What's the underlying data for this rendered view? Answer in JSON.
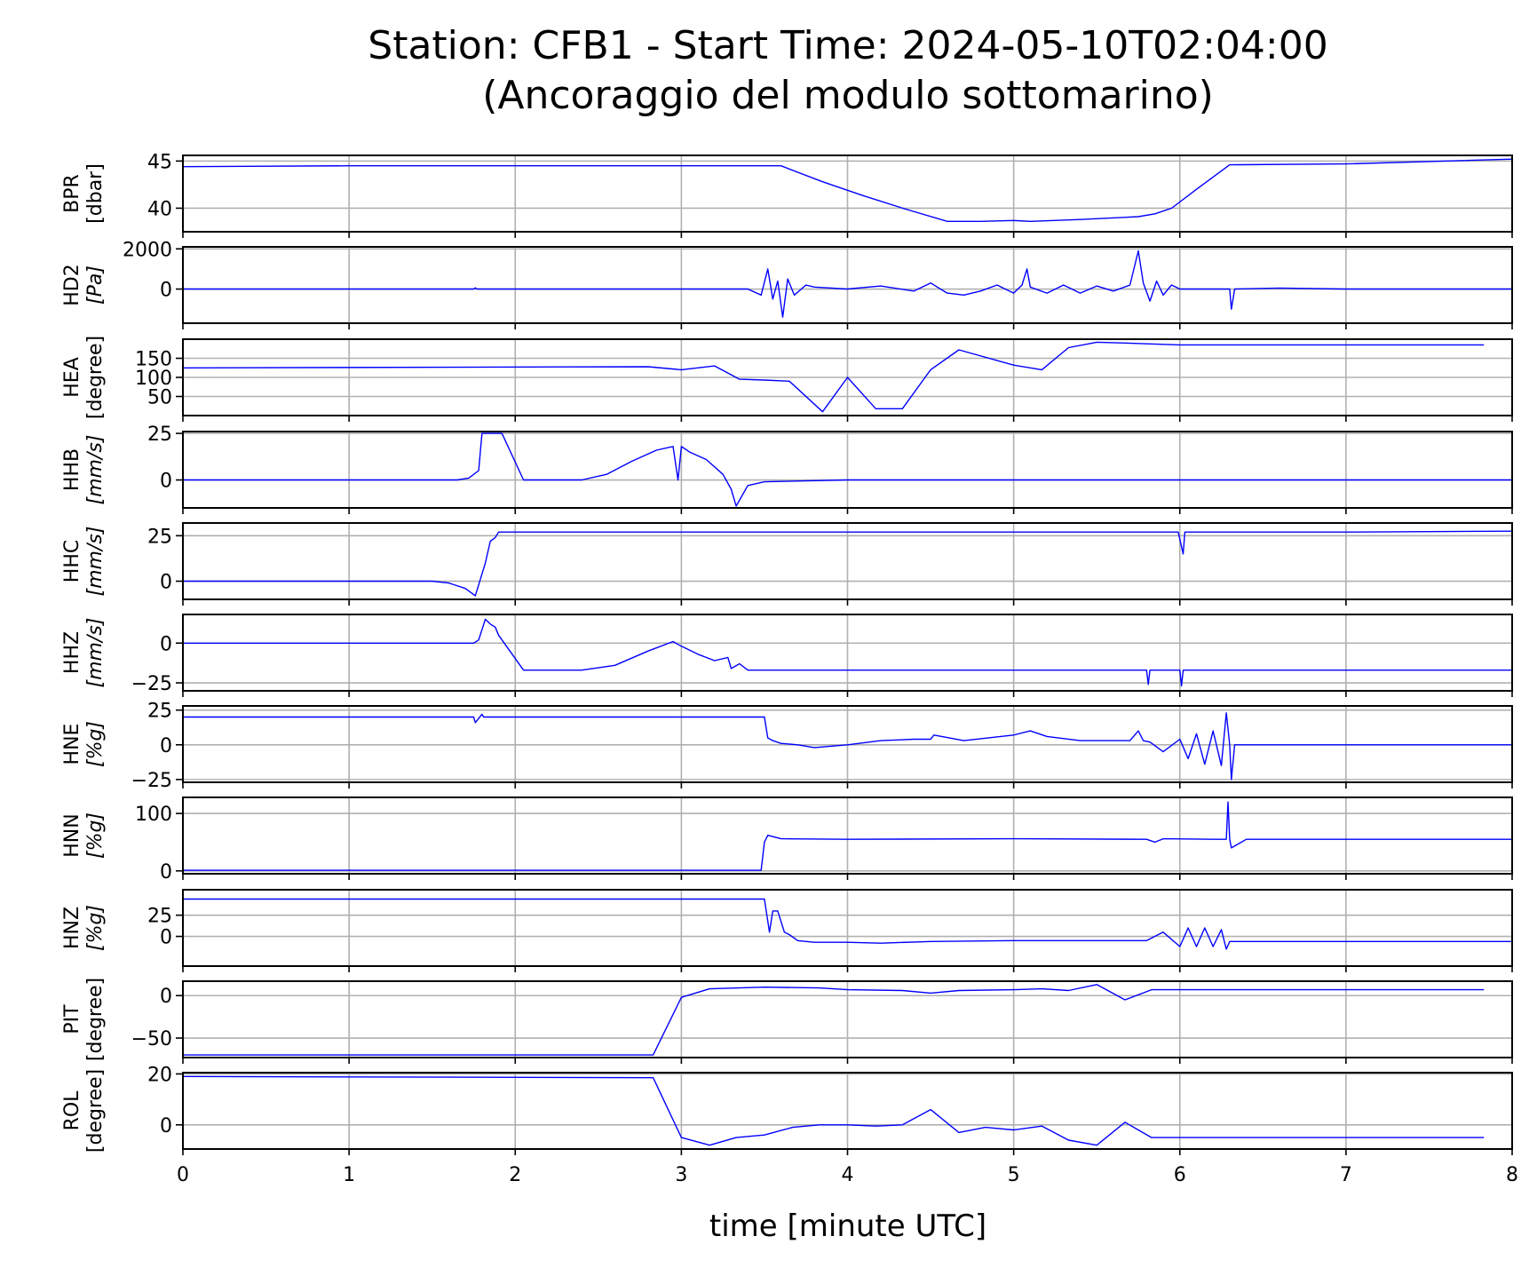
{
  "chart_data": {
    "type": "line",
    "title_line1": "Station: CFB1 - Start Time: 2024-05-10T02:04:00",
    "title_line2": "(Ancoraggio del modulo sottomarino)",
    "xlabel": "time [minute UTC]",
    "xlim": [
      0,
      8
    ],
    "xticks": [
      0,
      1,
      2,
      3,
      4,
      5,
      6,
      7,
      8
    ],
    "grid": true,
    "line_color": "#0000ff",
    "panels": [
      {
        "name": "BPR",
        "unit": "[dbar]",
        "italic_unit": false,
        "ylim": [
          37.5,
          45.6
        ],
        "yticks": [
          40,
          45
        ],
        "x": [
          0,
          1,
          2,
          3,
          3.6,
          3.85,
          4.1,
          4.35,
          4.6,
          4.8,
          5.0,
          5.1,
          5.4,
          5.75,
          5.85,
          5.95,
          6.1,
          6.3,
          7.0,
          8.0
        ],
        "y": [
          44.4,
          44.5,
          44.5,
          44.5,
          44.5,
          42.8,
          41.3,
          39.9,
          38.6,
          38.6,
          38.7,
          38.6,
          38.8,
          39.1,
          39.4,
          40.0,
          42.0,
          44.6,
          44.7,
          45.2
        ]
      },
      {
        "name": "HD2",
        "unit": "[Pa]",
        "italic_unit": true,
        "ylim": [
          -1700,
          2100
        ],
        "yticks": [
          0,
          2000
        ],
        "x": [
          0,
          1,
          1.75,
          1.76,
          1.77,
          2.5,
          3.0,
          3.4,
          3.48,
          3.52,
          3.55,
          3.58,
          3.61,
          3.64,
          3.68,
          3.75,
          3.8,
          4.0,
          4.2,
          4.4,
          4.5,
          4.6,
          4.7,
          4.8,
          4.9,
          5.0,
          5.05,
          5.08,
          5.1,
          5.2,
          5.3,
          5.4,
          5.5,
          5.6,
          5.7,
          5.75,
          5.78,
          5.82,
          5.86,
          5.9,
          5.95,
          6.0,
          6.1,
          6.3,
          6.31,
          6.33,
          6.6,
          7.0,
          8.0
        ],
        "y": [
          0,
          0,
          0,
          60,
          0,
          0,
          0,
          0,
          -300,
          1000,
          -500,
          400,
          -1400,
          500,
          -300,
          200,
          100,
          0,
          150,
          -100,
          300,
          -200,
          -300,
          -100,
          200,
          -200,
          200,
          1000,
          100,
          -200,
          200,
          -200,
          150,
          -100,
          200,
          1900,
          300,
          -600,
          400,
          -300,
          200,
          0,
          0,
          0,
          -1000,
          0,
          50,
          0,
          0
        ]
      },
      {
        "name": "HEA",
        "unit": "[degree]",
        "italic_unit": false,
        "ylim": [
          0,
          200
        ],
        "yticks": [
          50,
          100,
          150
        ],
        "x": [
          0,
          2.8,
          3.0,
          3.2,
          3.35,
          3.5,
          3.65,
          3.85,
          4.0,
          4.17,
          4.33,
          4.5,
          4.67,
          5.0,
          5.17,
          5.33,
          5.5,
          5.67,
          6.0,
          7.0,
          7.83
        ],
        "y": [
          125,
          128,
          120,
          130,
          95,
          93,
          90,
          10,
          100,
          18,
          18,
          120,
          172,
          132,
          120,
          178,
          192,
          190,
          185,
          185,
          185
        ]
      },
      {
        "name": "HHB",
        "unit": "[mm/s]",
        "italic_unit": true,
        "ylim": [
          -15,
          26
        ],
        "yticks": [
          0,
          25
        ],
        "x": [
          0,
          1.5,
          1.65,
          1.72,
          1.78,
          1.8,
          1.85,
          1.92,
          2.05,
          2.4,
          2.55,
          2.7,
          2.85,
          2.95,
          2.98,
          3.0,
          3.05,
          3.15,
          3.25,
          3.3,
          3.33,
          3.4,
          3.5,
          4.0,
          5.0,
          6.0,
          8.0
        ],
        "y": [
          0,
          0,
          0,
          1,
          5,
          25,
          25,
          25,
          0,
          0,
          3,
          10,
          16,
          18,
          0,
          18,
          15,
          11,
          3,
          -5,
          -14,
          -3,
          -1,
          0,
          0,
          0,
          0
        ]
      },
      {
        "name": "HHC",
        "unit": "[mm/s]",
        "italic_unit": true,
        "ylim": [
          -10,
          32
        ],
        "yticks": [
          0,
          25
        ],
        "x": [
          0,
          1.5,
          1.6,
          1.7,
          1.76,
          1.78,
          1.82,
          1.85,
          1.88,
          1.9,
          2.0,
          3.0,
          4.0,
          5.0,
          5.99,
          6.02,
          6.03,
          6.05,
          7.0,
          8.0
        ],
        "y": [
          0,
          0,
          -1,
          -4,
          -8,
          -2,
          10,
          22,
          24,
          27,
          27,
          27,
          27,
          27,
          27,
          15,
          27,
          27,
          27,
          27.5
        ]
      },
      {
        "name": "HHZ",
        "unit": "[mm/s]",
        "italic_unit": true,
        "ylim": [
          -30,
          18
        ],
        "yticks": [
          -25,
          0
        ],
        "x": [
          0,
          1.75,
          1.78,
          1.82,
          1.85,
          1.88,
          1.9,
          2.05,
          2.4,
          2.6,
          2.8,
          2.95,
          3.0,
          3.1,
          3.2,
          3.28,
          3.3,
          3.35,
          3.4,
          3.5,
          4.0,
          5.0,
          5.7,
          5.8,
          5.81,
          5.82,
          6.0,
          6.01,
          6.02,
          6.3,
          8.0
        ],
        "y": [
          0,
          0,
          2,
          15,
          12,
          10,
          5,
          -17,
          -17,
          -14,
          -5,
          1,
          -2,
          -7,
          -11,
          -9,
          -16,
          -13,
          -17,
          -17,
          -17,
          -17,
          -17,
          -17,
          -26,
          -17,
          -17,
          -27,
          -17,
          -17,
          -17
        ]
      },
      {
        "name": "HNE",
        "unit": "[%g]",
        "italic_unit": true,
        "ylim": [
          -27,
          28
        ],
        "yticks": [
          -25,
          0,
          25
        ],
        "x": [
          0,
          1,
          1.75,
          1.76,
          1.8,
          1.81,
          2.0,
          3.0,
          3.4,
          3.5,
          3.52,
          3.55,
          3.6,
          3.7,
          3.8,
          4.0,
          4.2,
          4.4,
          4.5,
          4.52,
          4.7,
          5.0,
          5.1,
          5.2,
          5.4,
          5.7,
          5.75,
          5.78,
          5.82,
          5.9,
          6.0,
          6.05,
          6.1,
          6.15,
          6.2,
          6.25,
          6.28,
          6.3,
          6.31,
          6.33,
          7.0,
          8.0
        ],
        "y": [
          20,
          20,
          20,
          16,
          22,
          20,
          20,
          20,
          20,
          20,
          5,
          3,
          1,
          0,
          -2,
          0,
          3,
          4,
          4,
          7,
          3,
          7,
          10,
          6,
          3,
          3,
          10,
          3,
          2,
          -5,
          4,
          -10,
          8,
          -14,
          10,
          -15,
          23,
          0,
          -25,
          0,
          0,
          0
        ]
      },
      {
        "name": "HNN",
        "unit": "[%g]",
        "italic_unit": true,
        "ylim": [
          -5,
          128
        ],
        "yticks": [
          0,
          100
        ],
        "x": [
          0,
          1,
          2,
          3,
          3.45,
          3.48,
          3.5,
          3.52,
          3.6,
          4.0,
          5.0,
          5.8,
          5.85,
          5.9,
          6.2,
          6.28,
          6.29,
          6.3,
          6.31,
          6.4,
          7.0,
          8.0
        ],
        "y": [
          1,
          1,
          1,
          1,
          1,
          1,
          50,
          62,
          56,
          55,
          56,
          55,
          50,
          56,
          55,
          55,
          120,
          55,
          40,
          55,
          55,
          55
        ]
      },
      {
        "name": "HNZ",
        "unit": "[%g]",
        "italic_unit": true,
        "ylim": [
          -35,
          55
        ],
        "yticks": [
          0,
          25
        ],
        "x": [
          0,
          2.0,
          3.0,
          3.5,
          3.53,
          3.55,
          3.58,
          3.62,
          3.65,
          3.7,
          3.8,
          4.0,
          4.2,
          4.5,
          5.0,
          5.5,
          5.8,
          5.9,
          6.0,
          6.05,
          6.1,
          6.15,
          6.2,
          6.25,
          6.28,
          6.3,
          7.0,
          8.0
        ],
        "y": [
          44,
          44,
          44,
          44,
          5,
          30,
          30,
          5,
          2,
          -5,
          -7,
          -7,
          -8,
          -6,
          -5,
          -5,
          -5,
          5,
          -12,
          10,
          -12,
          10,
          -12,
          8,
          -15,
          -6,
          -6,
          -6
        ]
      },
      {
        "name": "PIT",
        "unit": "[degree]",
        "italic_unit": false,
        "ylim": [
          -73,
          17
        ],
        "yticks": [
          -50,
          0
        ],
        "x": [
          0,
          2.83,
          3.0,
          3.17,
          3.5,
          3.83,
          4.0,
          4.33,
          4.5,
          4.67,
          5.0,
          5.17,
          5.33,
          5.5,
          5.67,
          5.83,
          6.0,
          7.0,
          7.83
        ],
        "y": [
          -70,
          -70,
          -2,
          8,
          10,
          9,
          7,
          6,
          3,
          6,
          7,
          8,
          6,
          13,
          -5,
          7,
          7,
          7,
          7
        ]
      },
      {
        "name": "ROL",
        "unit": "[degree]",
        "italic_unit": false,
        "ylim": [
          -9.5,
          20.5
        ],
        "yticks": [
          0,
          20
        ],
        "x": [
          0,
          2.83,
          3.0,
          3.17,
          3.33,
          3.5,
          3.67,
          3.83,
          4.0,
          4.17,
          4.33,
          4.5,
          4.67,
          4.83,
          5.0,
          5.17,
          5.33,
          5.5,
          5.67,
          5.83,
          6.0,
          7.0,
          7.83
        ],
        "y": [
          19,
          18.5,
          -5,
          -8,
          -5,
          -4,
          -1,
          0,
          0,
          -0.5,
          0,
          6,
          -3,
          -1,
          -2,
          -0.5,
          -6,
          -8,
          1,
          -5,
          -5,
          -5,
          -5
        ]
      }
    ]
  }
}
